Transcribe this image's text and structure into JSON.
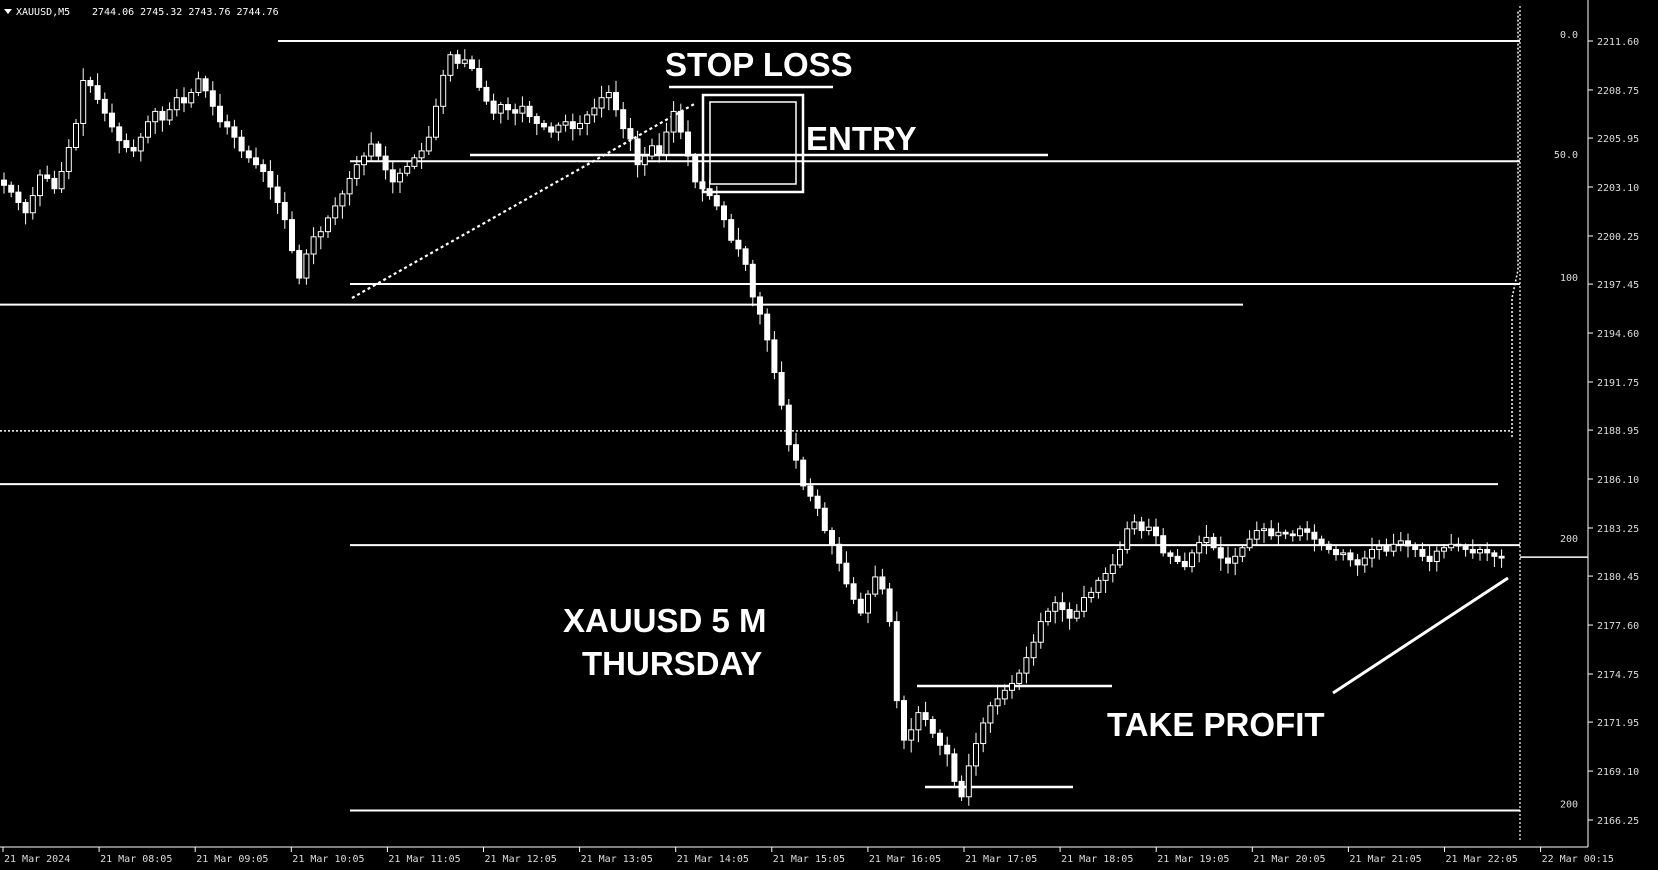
{
  "header": {
    "symbol": "XAUUSD,M5",
    "ohlc": "2744.06 2745.32 2743.76 2744.76"
  },
  "annotations": {
    "stop_loss": "STOP LOSS",
    "entry": "ENTRY",
    "title_line1": "XAUUSD 5 M",
    "title_line2": "THURSDAY",
    "take_profit": "TAKE PROFIT"
  },
  "chart_data": {
    "type": "candlestick",
    "symbol": "XAUUSD",
    "timeframe": "M5",
    "y_ticks": [
      "2211.60",
      "2208.75",
      "2205.95",
      "2203.10",
      "2200.25",
      "2197.45",
      "2194.60",
      "2191.75",
      "2188.95",
      "2186.10",
      "2183.25",
      "2180.45",
      "2177.60",
      "2174.75",
      "2171.95",
      "2169.10",
      "2166.25"
    ],
    "ylim": [
      2165.2,
      2212.7
    ],
    "x_ticks": [
      "21 Mar 2024",
      "21 Mar 08:05",
      "21 Mar 09:05",
      "21 Mar 10:05",
      "21 Mar 11:05",
      "21 Mar 12:05",
      "21 Mar 13:05",
      "21 Mar 14:05",
      "21 Mar 15:05",
      "21 Mar 16:05",
      "21 Mar 17:05",
      "21 Mar 18:05",
      "21 Mar 19:05",
      "21 Mar 20:05",
      "21 Mar 21:05",
      "21 Mar 22:05",
      "22 Mar 00:15"
    ],
    "fib_levels": [
      {
        "label": "0.0",
        "price": 2211.6
      },
      {
        "label": "50.0",
        "price": 2204.6
      },
      {
        "label": "100",
        "price": 2197.45
      },
      {
        "label": "200",
        "price": 2182.25
      },
      {
        "label": "200",
        "price": 2166.8
      }
    ],
    "horizontal_levels": [
      2196.25,
      2185.8
    ],
    "dotted_level": 2188.9,
    "current_price": 2181.55,
    "grid": false,
    "close_series": [
      2203.2,
      2202.8,
      2202.2,
      2201.6,
      2202.6,
      2203.8,
      2203.6,
      2203.0,
      2204.0,
      2205.4,
      2206.8,
      2209.3,
      2209.0,
      2208.2,
      2207.4,
      2206.6,
      2205.8,
      2205.4,
      2205.2,
      2206.0,
      2206.9,
      2207.5,
      2207.0,
      2207.6,
      2208.3,
      2208.0,
      2208.6,
      2209.4,
      2208.7,
      2207.8,
      2206.9,
      2206.6,
      2206.0,
      2205.2,
      2204.8,
      2204.4,
      2204.0,
      2203.1,
      2202.2,
      2201.2,
      2199.4,
      2197.8,
      2199.2,
      2200.2,
      2200.5,
      2201.3,
      2202.0,
      2202.7,
      2203.6,
      2204.4,
      2204.9,
      2205.6,
      2204.9,
      2204.1,
      2203.4,
      2203.9,
      2204.3,
      2204.8,
      2205.2,
      2206.0,
      2207.8,
      2209.6,
      2210.8,
      2210.3,
      2210.5,
      2210.0,
      2208.9,
      2208.1,
      2207.4,
      2207.9,
      2207.6,
      2207.4,
      2207.8,
      2207.2,
      2206.8,
      2206.6,
      2206.3,
      2206.7,
      2206.9,
      2206.5,
      2206.8,
      2207.3,
      2207.7,
      2208.3,
      2208.6,
      2207.6,
      2206.5,
      2205.9,
      2204.4,
      2204.9,
      2205.5,
      2205.0,
      2206.3,
      2207.5,
      2206.3,
      2204.9,
      2203.4,
      2203.0,
      2202.6,
      2202.0,
      2201.2,
      2200.0,
      2199.5,
      2198.6,
      2196.7,
      2195.7,
      2194.2,
      2192.3,
      2190.4,
      2188.1,
      2187.2,
      2185.7,
      2185.1,
      2184.4,
      2183.1,
      2182.3,
      2181.2,
      2180.0,
      2179.1,
      2178.3,
      2179.4,
      2180.4,
      2179.7,
      2177.8,
      2173.2,
      2170.9,
      2171.5,
      2172.5,
      2172.1,
      2171.3,
      2170.6,
      2170.1,
      2168.5,
      2167.6,
      2169.4,
      2170.7,
      2171.9,
      2172.9,
      2173.3,
      2173.8,
      2174.2,
      2174.8,
      2175.7,
      2176.6,
      2177.8,
      2178.4,
      2178.9,
      2178.5,
      2178.0,
      2178.4,
      2179.2,
      2179.5,
      2180.2,
      2180.6,
      2181.1,
      2182.0,
      2183.2,
      2183.6,
      2183.1,
      2183.3,
      2182.8,
      2181.8,
      2181.6,
      2181.3,
      2181.0,
      2181.8,
      2182.4,
      2182.7,
      2182.1,
      2181.5,
      2181.2,
      2181.6,
      2182.1,
      2182.6,
      2183.1,
      2183.2,
      2182.8,
      2183.0,
      2182.9,
      2182.8,
      2183.2,
      2183.0,
      2182.6,
      2182.3,
      2182.0,
      2181.7,
      2181.8,
      2181.4,
      2181.1,
      2181.5,
      2182.0,
      2182.2,
      2181.9,
      2182.3,
      2182.5,
      2182.2,
      2182.0,
      2181.6,
      2181.3,
      2181.9,
      2182.1,
      2182.3,
      2182.2,
      2182.0,
      2181.8,
      2182.0,
      2181.8,
      2181.6,
      2181.5
    ]
  }
}
